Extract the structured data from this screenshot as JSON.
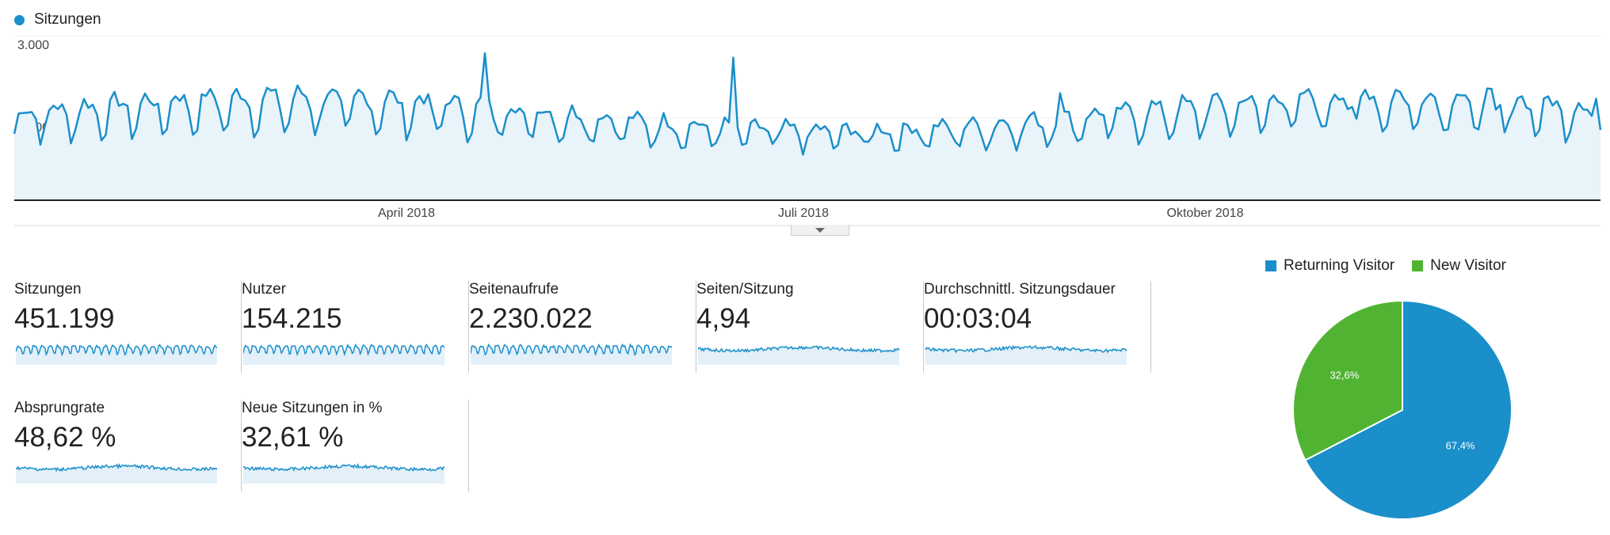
{
  "main_chart": {
    "legend_label": "Sitzungen",
    "series_color": "#1a8fca",
    "fill_color": "#e8f3fa",
    "y_ticks": [
      "3.000",
      "1.500"
    ],
    "x_ticks": [
      "April 2018",
      "Juli 2018",
      "Oktober 2018"
    ],
    "ylim": [
      0,
      3000
    ]
  },
  "metrics": [
    {
      "label": "Sitzungen",
      "value": "451.199",
      "spark": "dense"
    },
    {
      "label": "Nutzer",
      "value": "154.215",
      "spark": "dense"
    },
    {
      "label": "Seitenaufrufe",
      "value": "2.230.022",
      "spark": "dense"
    },
    {
      "label": "Seiten/Sitzung",
      "value": "4,94",
      "spark": "flat"
    },
    {
      "label": "Durchschnittl. Sitzungsdauer",
      "value": "00:03:04",
      "spark": "flat"
    },
    {
      "label": "Absprungrate",
      "value": "48,62 %",
      "spark": "flat"
    },
    {
      "label": "Neue Sitzungen in %",
      "value": "32,61 %",
      "spark": "flat"
    }
  ],
  "chart_data": {
    "type": "pie",
    "categories": [
      "Returning Visitor",
      "New Visitor"
    ],
    "values": [
      67.4,
      32.6
    ],
    "labels": [
      "67,4%",
      "32,6%"
    ],
    "colors": [
      "#1a8fca",
      "#50b432"
    ],
    "legend": "top"
  }
}
